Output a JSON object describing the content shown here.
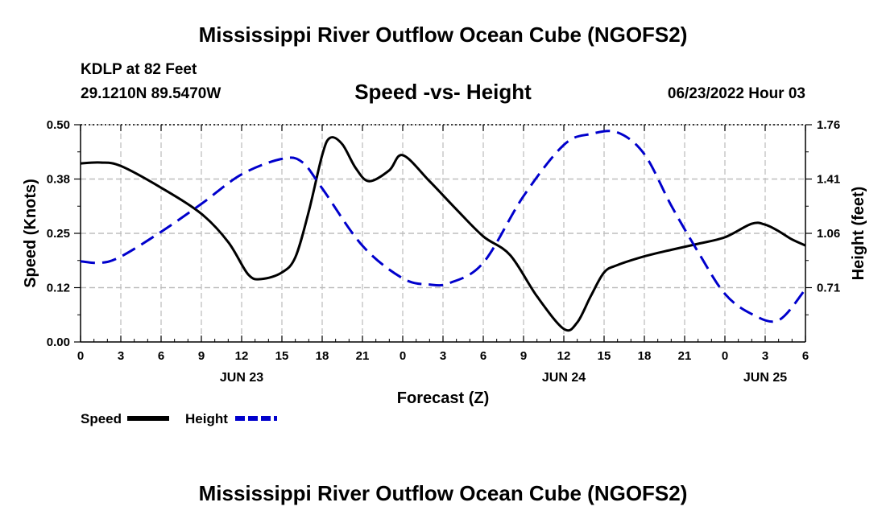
{
  "header": {
    "title": "Mississippi River Outflow Ocean Cube (NGOFS2)",
    "station": "KDLP at 82 Feet",
    "coords": "29.1210N  89.5470W",
    "subtitle": "Speed -vs- Height",
    "timestamp": "06/23/2022 Hour 03"
  },
  "footer": {
    "title": "Mississippi River Outflow Ocean Cube (NGOFS2)"
  },
  "colors": {
    "speed": "#000000",
    "height": "#0000cc",
    "grid": "#bbbbbb"
  },
  "chart_data": {
    "type": "line",
    "title": "Speed -vs- Height",
    "xlabel": "Forecast (Z)",
    "ylabel": "Speed (Knots)",
    "y2label": "Height (feet)",
    "x_hours_range": [
      0,
      54
    ],
    "x_tick_labels": [
      "0",
      "3",
      "6",
      "9",
      "12",
      "15",
      "18",
      "21",
      "0",
      "3",
      "6",
      "9",
      "12",
      "15",
      "18",
      "21",
      "0",
      "3",
      "6"
    ],
    "date_labels": [
      {
        "text": "JUN 23",
        "hour": 12
      },
      {
        "text": "JUN 24",
        "hour": 36
      },
      {
        "text": "JUN 25",
        "hour": 51
      }
    ],
    "ylim": [
      0,
      0.5
    ],
    "y_ticks": [
      0,
      0.125,
      0.25,
      0.375,
      0.5
    ],
    "y_tick_labels": [
      "0.00",
      "0.12",
      "0.25",
      "0.38",
      "0.50"
    ],
    "y2lim": [
      0.36,
      1.76
    ],
    "y2_ticks": [
      0.71,
      1.06,
      1.41,
      1.76
    ],
    "y2_tick_labels": [
      "0.71",
      "1.06",
      "1.41",
      "1.76"
    ],
    "legend": [
      {
        "name": "Speed",
        "key": "speed"
      },
      {
        "name": "Height",
        "key": "height"
      }
    ],
    "series": [
      {
        "name": "Speed",
        "key": "speed",
        "x": [
          0,
          1.5,
          3,
          6,
          9,
          11,
          12.5,
          13.5,
          15,
          16,
          17,
          18,
          18.6,
          19.5,
          20.5,
          21.5,
          23,
          24,
          26,
          28,
          30,
          32,
          34,
          36,
          37,
          38,
          39,
          40,
          42,
          44,
          46,
          48,
          50,
          51,
          52,
          53,
          54
        ],
        "values": [
          0.411,
          0.413,
          0.405,
          0.355,
          0.295,
          0.23,
          0.155,
          0.145,
          0.16,
          0.195,
          0.3,
          0.43,
          0.47,
          0.455,
          0.4,
          0.37,
          0.395,
          0.43,
          0.37,
          0.305,
          0.243,
          0.2,
          0.105,
          0.03,
          0.045,
          0.105,
          0.16,
          0.177,
          0.197,
          0.212,
          0.226,
          0.241,
          0.272,
          0.27,
          0.255,
          0.236,
          0.222
        ]
      },
      {
        "name": "Height",
        "key": "height",
        "x": [
          0,
          1.5,
          3,
          6,
          9,
          12,
          15,
          16.5,
          18,
          21,
          24,
          26,
          27.5,
          30,
          33,
          36,
          38,
          40,
          42,
          44,
          46,
          48,
          50,
          52,
          54
        ],
        "values": [
          0.88,
          0.87,
          0.91,
          1.07,
          1.25,
          1.44,
          1.54,
          1.52,
          1.35,
          0.98,
          0.77,
          0.73,
          0.74,
          0.87,
          1.3,
          1.63,
          1.7,
          1.71,
          1.57,
          1.24,
          0.94,
          0.67,
          0.54,
          0.5,
          0.7
        ]
      }
    ]
  }
}
